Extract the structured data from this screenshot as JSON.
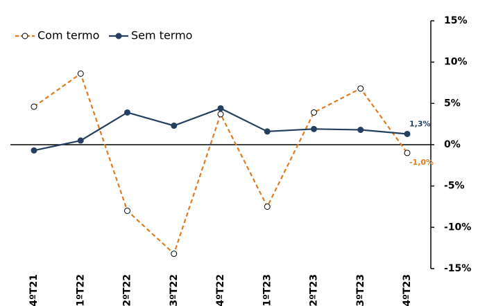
{
  "chart_data": {
    "type": "line",
    "categories": [
      "4ºT21",
      "1ºT22",
      "2ºT22",
      "3ºT22",
      "4ºT22",
      "1ºT23",
      "2ºT23",
      "3ºT23",
      "4ºT23"
    ],
    "series": [
      {
        "name": "Com termo",
        "color": "#e07b20",
        "dashed": true,
        "marker": "open",
        "values": [
          4.6,
          8.6,
          -8.0,
          -13.2,
          3.7,
          -7.5,
          3.9,
          6.8,
          -1.0
        ],
        "value_labels": [
          null,
          null,
          null,
          null,
          null,
          null,
          null,
          null,
          "-1,0%"
        ]
      },
      {
        "name": "Sem termo",
        "color": "#243f60",
        "dashed": false,
        "marker": "filled",
        "values": [
          -0.7,
          0.5,
          3.9,
          2.3,
          4.4,
          1.6,
          1.9,
          1.8,
          1.3
        ],
        "value_labels": [
          null,
          null,
          null,
          null,
          null,
          null,
          null,
          null,
          "1,3%"
        ]
      }
    ],
    "ylim": [
      -15,
      15
    ],
    "yticks": [
      {
        "value": -15,
        "label": "-15%"
      },
      {
        "value": -10,
        "label": "-10%"
      },
      {
        "value": -5,
        "label": "-5%"
      },
      {
        "value": 0,
        "label": "0%"
      },
      {
        "value": 5,
        "label": "5%"
      },
      {
        "value": 10,
        "label": "10%"
      },
      {
        "value": 15,
        "label": "15%"
      }
    ],
    "legend": "top-left"
  }
}
